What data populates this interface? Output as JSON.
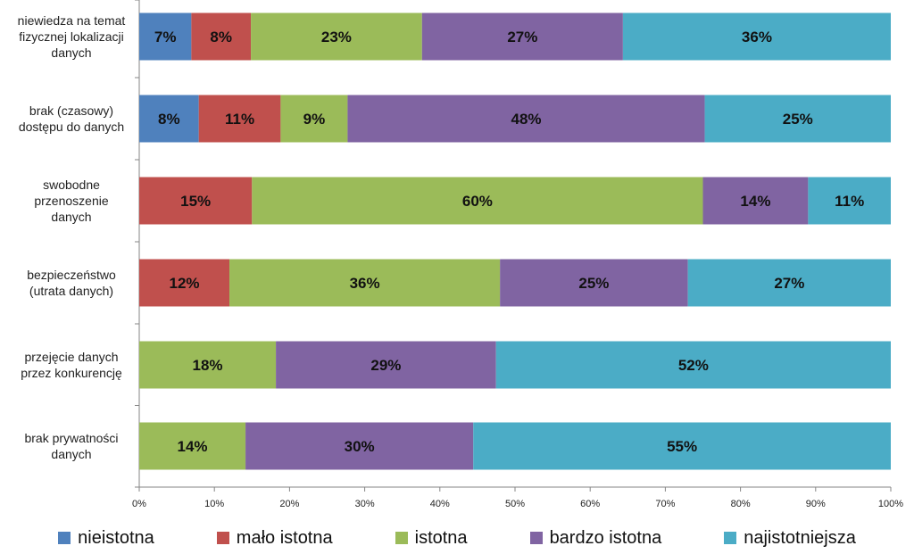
{
  "chart_data": {
    "type": "bar",
    "orientation": "horizontal",
    "stacked": "percent",
    "categories": [
      [
        "niewiedza na temat",
        "fizycznej lokalizacji",
        "danych"
      ],
      [
        "brak (czasowy)",
        "dostępu do danych"
      ],
      [
        "swobodne",
        "przenoszenie",
        "danych"
      ],
      [
        "bezpieczeństwo",
        "(utrata danych)"
      ],
      [
        "przejęcie danych",
        "przez konkurencję"
      ],
      [
        "brak prywatności",
        "danych"
      ]
    ],
    "series": [
      {
        "name": "nieistotna",
        "color": "#4F81BD",
        "values": [
          7,
          8,
          0,
          0,
          0,
          0
        ]
      },
      {
        "name": "mało istotna",
        "color": "#C0504D",
        "values": [
          8,
          11,
          15,
          12,
          0,
          0
        ]
      },
      {
        "name": "istotna",
        "color": "#9BBB59",
        "values": [
          23,
          9,
          60,
          36,
          18,
          14
        ]
      },
      {
        "name": "bardzo istotna",
        "color": "#8064A2",
        "values": [
          27,
          48,
          14,
          25,
          29,
          30
        ]
      },
      {
        "name": "najistotniejsza",
        "color": "#4BACC6",
        "values": [
          36,
          25,
          11,
          27,
          52,
          55
        ]
      }
    ],
    "xticks": [
      "0%",
      "10%",
      "20%",
      "30%",
      "40%",
      "50%",
      "60%",
      "70%",
      "80%",
      "90%",
      "100%"
    ],
    "xlim": [
      0,
      100
    ],
    "title": "",
    "xlabel": "",
    "ylabel": "",
    "grid": false,
    "legend_position": "bottom"
  }
}
